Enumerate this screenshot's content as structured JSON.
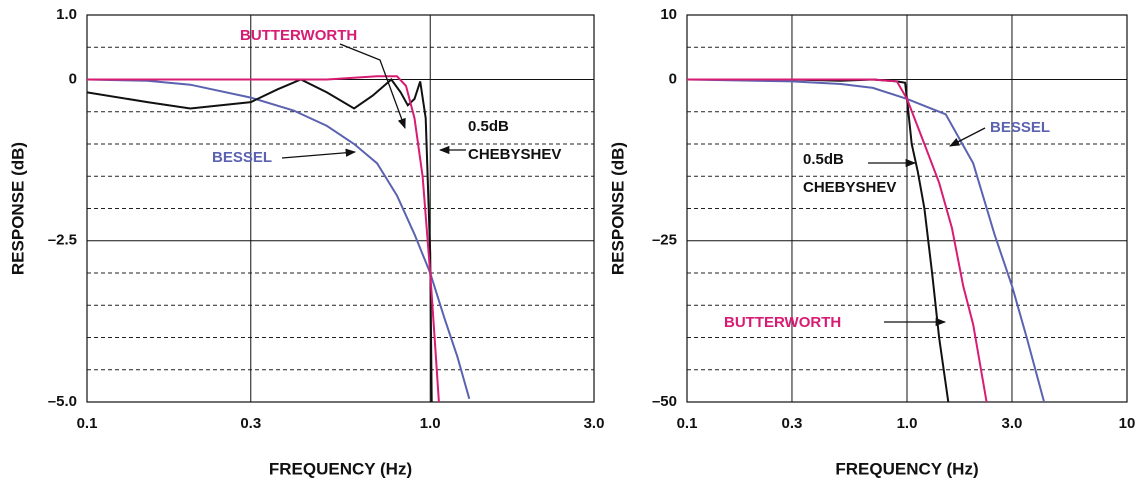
{
  "chart_data": [
    {
      "type": "line",
      "xlog": true,
      "grid": true,
      "xlabel": "FREQUENCY (Hz)",
      "ylabel": "RESPONSE (dB)",
      "xlim": [
        0.1,
        3.0
      ],
      "ylim": [
        -5.0,
        1.0
      ],
      "xticks": [
        0.1,
        0.3,
        {
          "value": 1.0,
          "label": "1.0"
        },
        {
          "value": 3.0,
          "label": "3.0"
        }
      ],
      "yticks": [
        {
          "value": 1.0,
          "label": "1.0"
        },
        0,
        {
          "value": -2.5,
          "label": "–2.5"
        },
        {
          "value": -5.0,
          "label": "–5.0"
        }
      ],
      "minor_yticks": [
        0.5,
        -0.5,
        -1.0,
        -1.5,
        -2.0,
        -3.0,
        -3.5,
        -4.0,
        -4.5
      ],
      "series": [
        {
          "name": "BESSEL",
          "color": "#5b63b0",
          "x": [
            0.1,
            0.15,
            0.2,
            0.3,
            0.4,
            0.5,
            0.6,
            0.7,
            0.8,
            0.9,
            1.0,
            1.1,
            1.2,
            1.3
          ],
          "values": [
            0,
            -0.02,
            -0.08,
            -0.28,
            -0.48,
            -0.72,
            -1.0,
            -1.3,
            -1.8,
            -2.4,
            -3.0,
            -3.7,
            -4.3,
            -4.95
          ]
        },
        {
          "name": "0.5dB CHEBYSHEV",
          "color": "#111111",
          "x": [
            0.1,
            0.15,
            0.2,
            0.3,
            0.36,
            0.42,
            0.5,
            0.6,
            0.68,
            0.77,
            0.82,
            0.86,
            0.9,
            0.935,
            0.97,
            1.0,
            1.01
          ],
          "values": [
            -0.2,
            -0.35,
            -0.45,
            -0.35,
            -0.15,
            0,
            -0.2,
            -0.45,
            -0.25,
            0,
            -0.2,
            -0.4,
            -0.3,
            -0.03,
            -0.6,
            -2.7,
            -5.0
          ]
        },
        {
          "name": "BUTTERWORTH",
          "color": "#d81b73",
          "x": [
            0.1,
            0.2,
            0.3,
            0.5,
            0.7,
            0.8,
            0.85,
            0.9,
            0.95,
            1.0,
            1.03,
            1.06
          ],
          "values": [
            0,
            0,
            0,
            0,
            0.05,
            0.05,
            -0.1,
            -0.6,
            -1.5,
            -3.0,
            -4.0,
            -5.0
          ]
        }
      ],
      "annotations": [
        {
          "text": [
            "BUTTERWORTH"
          ],
          "color": "#d81b73"
        },
        {
          "text": [
            "0.5dB",
            "CHEBYSHEV"
          ],
          "color": "#111111"
        },
        {
          "text": [
            "BESSEL"
          ],
          "color": "#5b63b0"
        }
      ]
    },
    {
      "type": "line",
      "xlog": true,
      "grid": true,
      "xlabel": "FREQUENCY (Hz)",
      "ylabel": "RESPONSE (dB)",
      "xlim": [
        0.1,
        10
      ],
      "ylim": [
        -50,
        10
      ],
      "xticks": [
        0.1,
        0.3,
        {
          "value": 1.0,
          "label": "1.0"
        },
        {
          "value": 3.0,
          "label": "3.0"
        },
        10
      ],
      "yticks": [
        10,
        0,
        {
          "value": -25,
          "label": "–25"
        },
        {
          "value": -50,
          "label": "–50"
        }
      ],
      "minor_yticks": [
        5,
        -5,
        -10,
        -15,
        -20,
        -30,
        -35,
        -40,
        -45
      ],
      "series": [
        {
          "name": "BESSEL",
          "color": "#5b63b0",
          "x": [
            0.1,
            0.3,
            0.5,
            0.7,
            1.0,
            1.5,
            2.0,
            2.5,
            3.0,
            3.5,
            4.2
          ],
          "values": [
            0,
            -0.3,
            -0.7,
            -1.3,
            -3,
            -5.4,
            -13,
            -24,
            -32,
            -40,
            -50
          ]
        },
        {
          "name": "0.5dB CHEBYSHEV",
          "color": "#111111",
          "x": [
            0.1,
            0.3,
            0.5,
            0.7,
            0.9,
            0.98,
            1.0,
            1.05,
            1.12,
            1.2,
            1.3,
            1.4,
            1.54
          ],
          "values": [
            0,
            0,
            -0.2,
            0,
            -0.3,
            -0.5,
            -3,
            -10,
            -14.3,
            -20,
            -30,
            -40,
            -50
          ]
        },
        {
          "name": "BUTTERWORTH",
          "color": "#d81b73",
          "x": [
            0.1,
            0.3,
            0.5,
            0.7,
            0.9,
            1.0,
            1.2,
            1.4,
            1.6,
            1.8,
            2.0,
            2.3
          ],
          "values": [
            0,
            0,
            0,
            0,
            -0.3,
            -3,
            -10,
            -16,
            -23,
            -32,
            -38,
            -50
          ]
        }
      ],
      "annotations": [
        {
          "text": [
            "BESSEL"
          ],
          "color": "#5b63b0"
        },
        {
          "text": [
            "0.5dB",
            "CHEBYSHEV"
          ],
          "color": "#111111"
        },
        {
          "text": [
            "BUTTERWORTH"
          ],
          "color": "#d81b73"
        }
      ]
    }
  ]
}
